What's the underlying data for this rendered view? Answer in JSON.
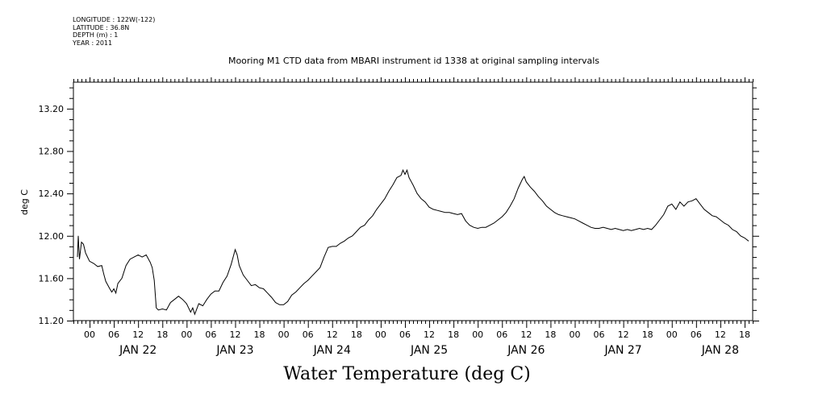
{
  "header": {
    "meta_lines": [
      "LONGITUDE : 122W(-122)",
      "LATITUDE : 36.8N",
      "DEPTH (m) : 1",
      "YEAR : 2011"
    ],
    "title": "Mooring M1 CTD data from MBARI instrument id 1338 at original sampling intervals"
  },
  "footer": {
    "text": "Water Temperature (deg C)"
  },
  "chart_data": {
    "type": "line",
    "title": "Mooring M1 CTD data from MBARI instrument id 1338 at original sampling intervals",
    "xlabel": "",
    "ylabel": "deg C",
    "series_color": "#000000",
    "xlim_hours": [
      -4,
      164
    ],
    "ylim": [
      11.2,
      13.45
    ],
    "yticks": [
      11.2,
      11.6,
      12.0,
      12.4,
      12.8,
      13.2
    ],
    "ytick_labels": [
      "11.20",
      "11.60",
      "12.00",
      "12.40",
      "12.80",
      "13.20"
    ],
    "hour_labels": [
      "00",
      "06",
      "12",
      "18",
      "00",
      "06",
      "12",
      "18",
      "00",
      "06",
      "12",
      "18",
      "00",
      "06",
      "12",
      "18",
      "00",
      "06",
      "12",
      "18",
      "00",
      "06",
      "12",
      "18",
      "00",
      "06",
      "12",
      "18"
    ],
    "day_labels": [
      "JAN 22",
      "JAN 23",
      "JAN 24",
      "JAN 25",
      "JAN 26",
      "JAN 27",
      "JAN 28"
    ],
    "grid": false,
    "points": [
      [
        -3,
        11.8
      ],
      [
        -2.8,
        12.0
      ],
      [
        -2.5,
        11.78
      ],
      [
        -2,
        11.94
      ],
      [
        -1.5,
        11.92
      ],
      [
        -1,
        11.84
      ],
      [
        -0.5,
        11.8
      ],
      [
        0,
        11.76
      ],
      [
        1,
        11.74
      ],
      [
        2,
        11.71
      ],
      [
        3,
        11.72
      ],
      [
        3.5,
        11.64
      ],
      [
        4,
        11.57
      ],
      [
        5,
        11.5
      ],
      [
        5.5,
        11.47
      ],
      [
        6,
        11.5
      ],
      [
        6.5,
        11.46
      ],
      [
        7,
        11.55
      ],
      [
        8,
        11.6
      ],
      [
        9,
        11.72
      ],
      [
        10,
        11.78
      ],
      [
        11,
        11.8
      ],
      [
        12,
        11.82
      ],
      [
        13,
        11.8
      ],
      [
        14,
        11.82
      ],
      [
        15,
        11.75
      ],
      [
        15.5,
        11.7
      ],
      [
        16,
        11.58
      ],
      [
        16.5,
        11.32
      ],
      [
        17,
        11.3
      ],
      [
        18,
        11.31
      ],
      [
        19,
        11.3
      ],
      [
        20,
        11.37
      ],
      [
        21,
        11.4
      ],
      [
        22,
        11.43
      ],
      [
        23,
        11.4
      ],
      [
        24,
        11.36
      ],
      [
        25,
        11.28
      ],
      [
        25.5,
        11.32
      ],
      [
        26,
        11.26
      ],
      [
        27,
        11.36
      ],
      [
        28,
        11.34
      ],
      [
        29,
        11.4
      ],
      [
        30,
        11.45
      ],
      [
        31,
        11.48
      ],
      [
        32,
        11.48
      ],
      [
        33,
        11.56
      ],
      [
        34,
        11.62
      ],
      [
        35,
        11.73
      ],
      [
        35.5,
        11.8
      ],
      [
        36,
        11.87
      ],
      [
        36.5,
        11.82
      ],
      [
        37,
        11.72
      ],
      [
        38,
        11.63
      ],
      [
        39,
        11.58
      ],
      [
        40,
        11.53
      ],
      [
        41,
        11.54
      ],
      [
        42,
        11.51
      ],
      [
        43,
        11.5
      ],
      [
        44,
        11.46
      ],
      [
        45,
        11.42
      ],
      [
        46,
        11.37
      ],
      [
        47,
        11.35
      ],
      [
        48,
        11.35
      ],
      [
        49,
        11.38
      ],
      [
        50,
        11.44
      ],
      [
        51,
        11.47
      ],
      [
        52,
        11.51
      ],
      [
        53,
        11.55
      ],
      [
        54,
        11.58
      ],
      [
        55,
        11.62
      ],
      [
        56,
        11.66
      ],
      [
        57,
        11.7
      ],
      [
        58,
        11.8
      ],
      [
        59,
        11.89
      ],
      [
        60,
        11.9
      ],
      [
        61,
        11.9
      ],
      [
        62,
        11.93
      ],
      [
        63,
        11.95
      ],
      [
        64,
        11.98
      ],
      [
        65,
        12.0
      ],
      [
        66,
        12.04
      ],
      [
        67,
        12.08
      ],
      [
        68,
        12.1
      ],
      [
        69,
        12.15
      ],
      [
        70,
        12.19
      ],
      [
        71,
        12.25
      ],
      [
        72,
        12.3
      ],
      [
        73,
        12.35
      ],
      [
        74,
        12.42
      ],
      [
        75,
        12.48
      ],
      [
        76,
        12.55
      ],
      [
        77,
        12.57
      ],
      [
        77.5,
        12.62
      ],
      [
        78,
        12.58
      ],
      [
        78.5,
        12.62
      ],
      [
        79,
        12.55
      ],
      [
        80,
        12.48
      ],
      [
        81,
        12.4
      ],
      [
        82,
        12.35
      ],
      [
        83,
        12.32
      ],
      [
        84,
        12.27
      ],
      [
        85,
        12.25
      ],
      [
        86,
        12.24
      ],
      [
        87,
        12.23
      ],
      [
        88,
        12.22
      ],
      [
        89,
        12.22
      ],
      [
        90,
        12.21
      ],
      [
        91,
        12.2
      ],
      [
        92,
        12.21
      ],
      [
        93,
        12.14
      ],
      [
        94,
        12.1
      ],
      [
        95,
        12.08
      ],
      [
        96,
        12.07
      ],
      [
        97,
        12.08
      ],
      [
        98,
        12.08
      ],
      [
        99,
        12.1
      ],
      [
        100,
        12.12
      ],
      [
        101,
        12.15
      ],
      [
        102,
        12.18
      ],
      [
        103,
        12.22
      ],
      [
        104,
        12.28
      ],
      [
        105,
        12.35
      ],
      [
        106,
        12.45
      ],
      [
        107,
        12.53
      ],
      [
        107.5,
        12.56
      ],
      [
        108,
        12.51
      ],
      [
        109,
        12.46
      ],
      [
        110,
        12.42
      ],
      [
        111,
        12.37
      ],
      [
        112,
        12.33
      ],
      [
        113,
        12.28
      ],
      [
        114,
        12.25
      ],
      [
        115,
        12.22
      ],
      [
        116,
        12.2
      ],
      [
        117,
        12.19
      ],
      [
        118,
        12.18
      ],
      [
        119,
        12.17
      ],
      [
        120,
        12.16
      ],
      [
        121,
        12.14
      ],
      [
        122,
        12.12
      ],
      [
        123,
        12.1
      ],
      [
        124,
        12.08
      ],
      [
        125,
        12.07
      ],
      [
        126,
        12.07
      ],
      [
        127,
        12.08
      ],
      [
        128,
        12.07
      ],
      [
        129,
        12.06
      ],
      [
        130,
        12.07
      ],
      [
        131,
        12.06
      ],
      [
        132,
        12.05
      ],
      [
        133,
        12.06
      ],
      [
        134,
        12.05
      ],
      [
        135,
        12.06
      ],
      [
        136,
        12.07
      ],
      [
        137,
        12.06
      ],
      [
        138,
        12.07
      ],
      [
        139,
        12.06
      ],
      [
        140,
        12.1
      ],
      [
        141,
        12.15
      ],
      [
        142,
        12.2
      ],
      [
        143,
        12.28
      ],
      [
        144,
        12.3
      ],
      [
        145,
        12.25
      ],
      [
        146,
        12.32
      ],
      [
        147,
        12.28
      ],
      [
        148,
        12.32
      ],
      [
        149,
        12.33
      ],
      [
        150,
        12.35
      ],
      [
        151,
        12.3
      ],
      [
        152,
        12.25
      ],
      [
        153,
        12.22
      ],
      [
        154,
        12.19
      ],
      [
        155,
        12.18
      ],
      [
        156,
        12.15
      ],
      [
        157,
        12.12
      ],
      [
        158,
        12.1
      ],
      [
        159,
        12.06
      ],
      [
        160,
        12.04
      ],
      [
        161,
        12.0
      ],
      [
        162,
        11.98
      ],
      [
        163,
        11.95
      ]
    ]
  }
}
